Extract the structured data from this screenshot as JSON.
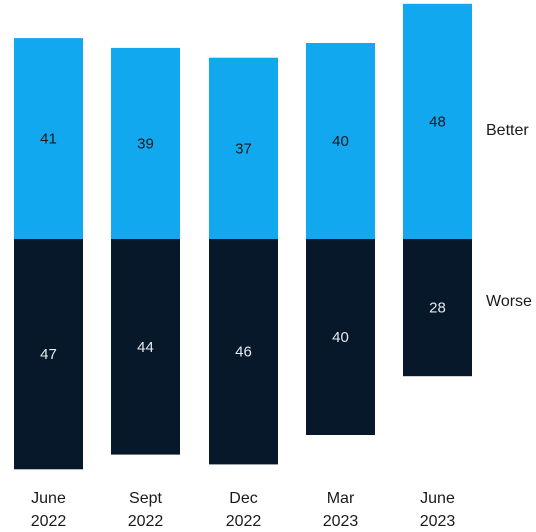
{
  "chart_data": {
    "type": "bar",
    "categories": [
      [
        "June",
        "2022"
      ],
      [
        "Sept",
        "2022"
      ],
      [
        "Dec",
        "2022"
      ],
      [
        "Mar",
        "2023"
      ],
      [
        "June",
        "2023"
      ]
    ],
    "series": [
      {
        "name": "Better",
        "values": [
          41,
          39,
          37,
          40,
          48
        ],
        "color": "#11a8ef"
      },
      {
        "name": "Worse",
        "values": [
          47,
          44,
          46,
          40,
          28
        ],
        "color": "#061829"
      }
    ],
    "label_colors": {
      "Better": "#1a1a1a",
      "Worse": "#e6e9ee"
    },
    "layout": "diverging-stacked",
    "legend": "right (direct labels)",
    "grid": false
  }
}
